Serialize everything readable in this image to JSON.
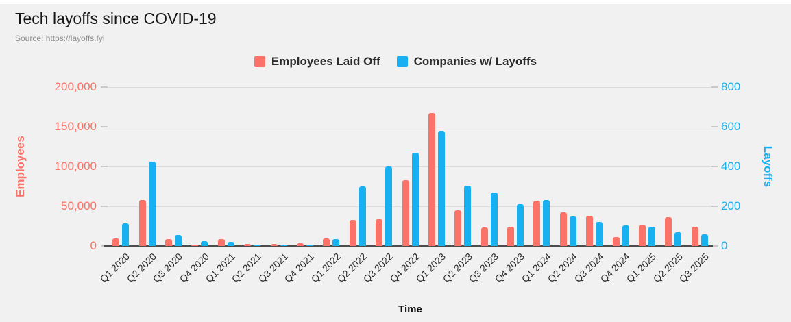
{
  "header": {
    "title": "Tech layoffs since COVID-19",
    "source": "Source: https://layoffs.fyi"
  },
  "legend": [
    {
      "label": "Employees Laid Off",
      "color": "#FA7268"
    },
    {
      "label": "Companies w/ Layoffs",
      "color": "#19B0F2"
    }
  ],
  "chart_data": {
    "type": "bar",
    "title": "Tech layoffs since COVID-19",
    "xlabel": "Time",
    "grid": true,
    "legend_position": "top",
    "background": "#F1F1F1",
    "y_left": {
      "label": "Employees",
      "color": "#FA7268",
      "max": 200000,
      "ticks": [
        "200,000",
        "150,000",
        "100,000",
        "50,000",
        "0"
      ]
    },
    "y_right": {
      "label": "Layoffs",
      "color": "#19B0F2",
      "max": 800,
      "ticks": [
        "800",
        "600",
        "400",
        "200",
        "0"
      ]
    },
    "categories": [
      "Q1 2020",
      "Q2 2020",
      "Q3 2020",
      "Q4 2020",
      "Q1 2021",
      "Q2 2021",
      "Q3 2021",
      "Q4 2021",
      "Q1 2022",
      "Q2 2022",
      "Q3 2022",
      "Q4 2022",
      "Q1 2023",
      "Q2 2023",
      "Q3 2023",
      "Q4 2023",
      "Q1 2024",
      "Q2 2024",
      "Q3 2024",
      "Q4 2024",
      "Q1 2025",
      "Q2 2025",
      "Q3 2025"
    ],
    "series": [
      {
        "name": "Employees Laid Off",
        "axis": "left",
        "color": "#FA7268",
        "values": [
          9600,
          58000,
          9000,
          2000,
          8700,
          2600,
          2600,
          3500,
          9500,
          33000,
          34000,
          82500,
          167000,
          45000,
          23500,
          24000,
          56500,
          42000,
          38000,
          11000,
          27000,
          36500,
          24000
        ]
      },
      {
        "name": "Companies w/ Layoffs",
        "axis": "right",
        "color": "#19B0F2",
        "values": [
          115,
          425,
          55,
          25,
          20,
          8,
          8,
          8,
          35,
          300,
          400,
          470,
          580,
          305,
          270,
          210,
          230,
          150,
          120,
          105,
          95,
          70,
          60
        ]
      }
    ]
  }
}
